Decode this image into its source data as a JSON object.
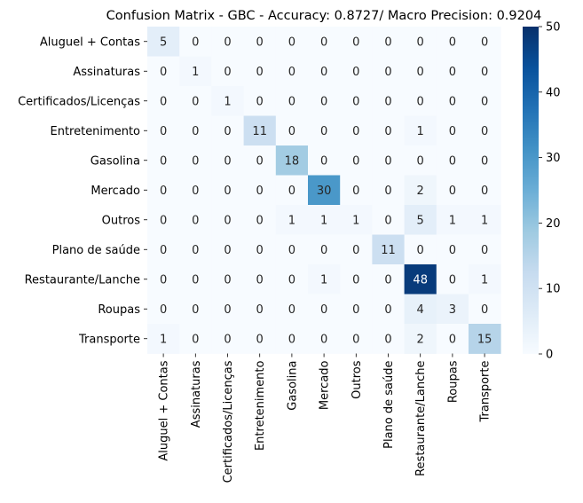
{
  "chart_data": {
    "type": "heatmap",
    "title": "Confusion Matrix - GBC - Accuracy: 0.8727/ Macro Precision: 0.9204",
    "xlabel": "",
    "ylabel": "",
    "row_labels": [
      "Aluguel + Contas",
      "Assinaturas",
      "Certificados/Licenças",
      "Entretenimento",
      "Gasolina",
      "Mercado",
      "Outros",
      "Plano de saúde",
      "Restaurante/Lanche",
      "Roupas",
      "Transporte"
    ],
    "col_labels": [
      "Aluguel + Contas",
      "Assinaturas",
      "Certificados/Licenças",
      "Entretenimento",
      "Gasolina",
      "Mercado",
      "Outros",
      "Plano de saúde",
      "Restaurante/Lanche",
      "Roupas",
      "Transporte"
    ],
    "matrix": [
      [
        5,
        0,
        0,
        0,
        0,
        0,
        0,
        0,
        0,
        0,
        0
      ],
      [
        0,
        1,
        0,
        0,
        0,
        0,
        0,
        0,
        0,
        0,
        0
      ],
      [
        0,
        0,
        1,
        0,
        0,
        0,
        0,
        0,
        0,
        0,
        0
      ],
      [
        0,
        0,
        0,
        11,
        0,
        0,
        0,
        0,
        1,
        0,
        0
      ],
      [
        0,
        0,
        0,
        0,
        18,
        0,
        0,
        0,
        0,
        0,
        0
      ],
      [
        0,
        0,
        0,
        0,
        0,
        30,
        0,
        0,
        2,
        0,
        0
      ],
      [
        0,
        0,
        0,
        0,
        1,
        1,
        1,
        0,
        5,
        1,
        1
      ],
      [
        0,
        0,
        0,
        0,
        0,
        0,
        0,
        11,
        0,
        0,
        0
      ],
      [
        0,
        0,
        0,
        0,
        0,
        1,
        0,
        0,
        48,
        0,
        1
      ],
      [
        0,
        0,
        0,
        0,
        0,
        0,
        0,
        0,
        4,
        3,
        0
      ],
      [
        1,
        0,
        0,
        0,
        0,
        0,
        0,
        0,
        2,
        0,
        15
      ]
    ],
    "colorbar": {
      "min": 0,
      "max": 50,
      "ticks": [
        0,
        10,
        20,
        30,
        40,
        50
      ]
    },
    "colormap": "Blues"
  }
}
